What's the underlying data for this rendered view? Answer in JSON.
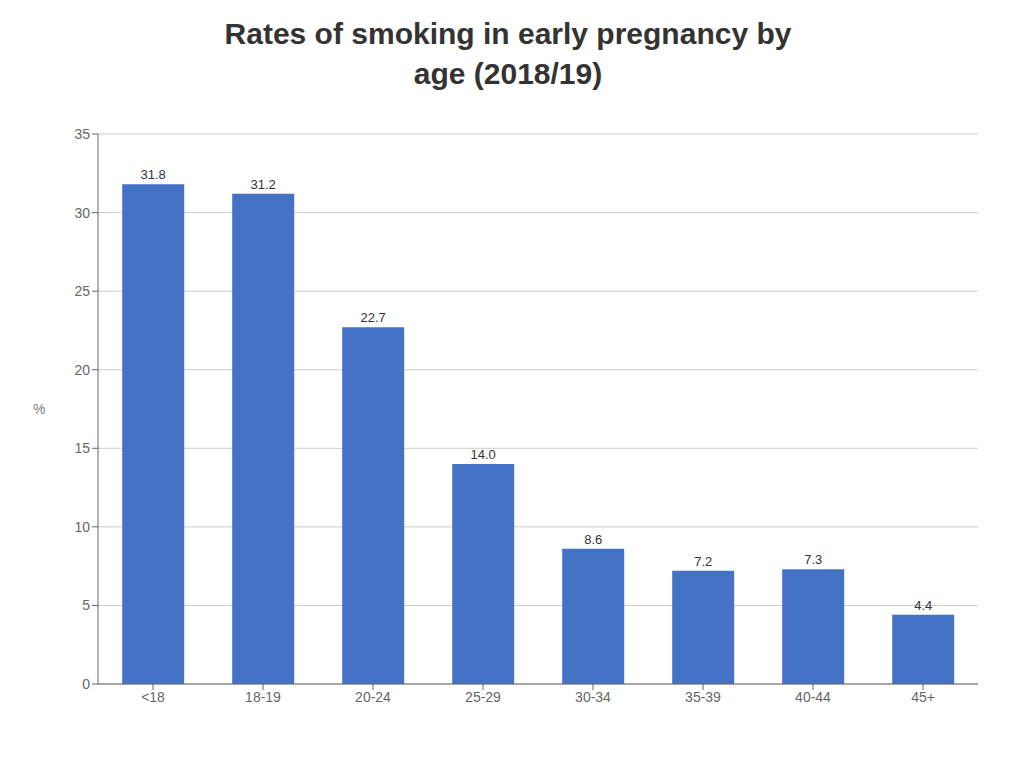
{
  "chart_data": {
    "type": "bar",
    "title": "Rates of smoking in early pregnancy by\nage (2018/19)",
    "ylabel": "%",
    "categories": [
      "<18",
      "18-19",
      "20-24",
      "25-29",
      "30-34",
      "35-39",
      "40-44",
      "45+"
    ],
    "values": [
      31.8,
      31.2,
      22.7,
      14.0,
      8.6,
      7.2,
      7.3,
      4.4
    ],
    "value_labels": [
      "31.8",
      "31.2",
      "22.7",
      "14.0",
      "8.6",
      "7.2",
      "7.3",
      "4.4"
    ],
    "data_labels": true,
    "color": "#4472C4",
    "ylim": [
      0,
      35
    ],
    "yticks": [
      0,
      5,
      10,
      15,
      20,
      25,
      30,
      35
    ],
    "grid": true
  }
}
